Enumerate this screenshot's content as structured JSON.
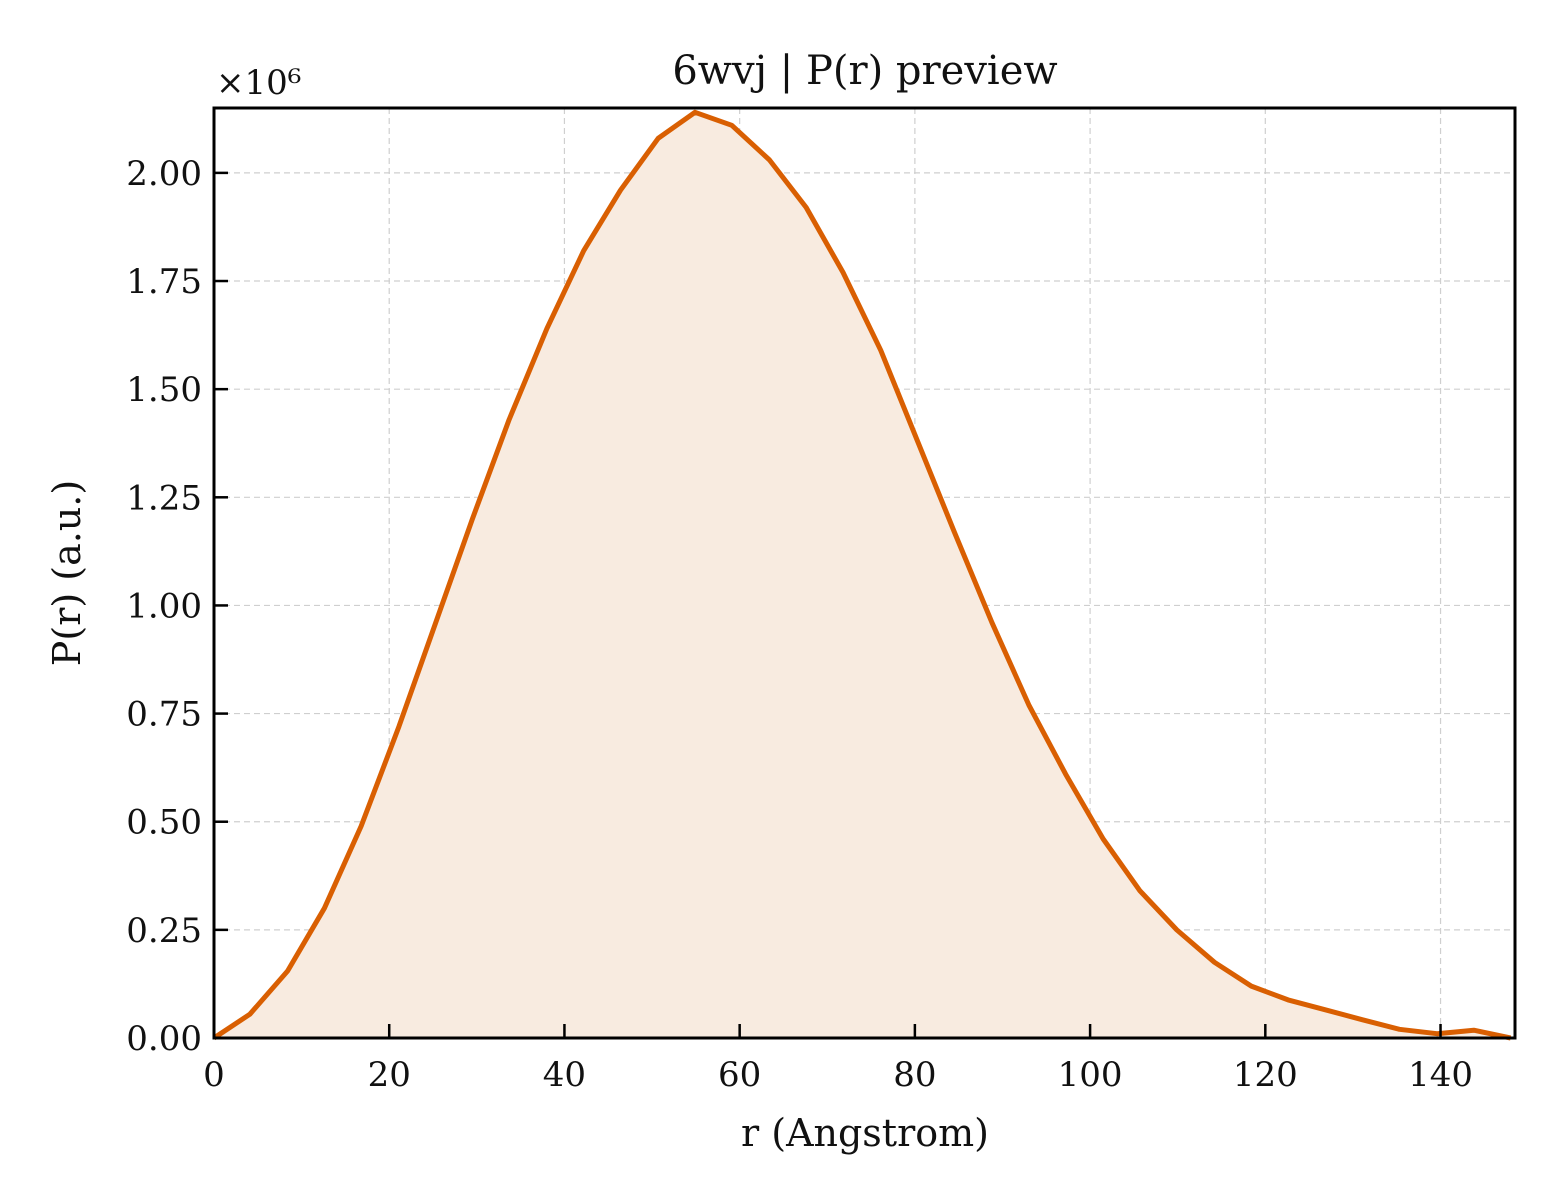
{
  "chart_data": {
    "type": "area",
    "title": "6wvj | P(r) preview",
    "xlabel": "r (Angstrom)",
    "ylabel": "P(r) (a.u.)",
    "y_multiplier_label": "×10⁶",
    "xlim": [
      0,
      148.5
    ],
    "ylim": [
      0,
      2.15
    ],
    "x_ticks": [
      0,
      20,
      40,
      60,
      80,
      100,
      120,
      140
    ],
    "y_ticks": [
      0.0,
      0.25,
      0.5,
      0.75,
      1.0,
      1.25,
      1.5,
      1.75,
      2.0
    ],
    "x_tick_labels": [
      "0",
      "20",
      "40",
      "60",
      "80",
      "100",
      "120",
      "140"
    ],
    "y_tick_labels": [
      "0.00",
      "0.25",
      "0.50",
      "0.75",
      "1.00",
      "1.25",
      "1.50",
      "1.75",
      "2.00"
    ],
    "grid": true,
    "colors": {
      "line": "#d95f02",
      "fill": "#f8ebe0",
      "grid": "#cfcfcf",
      "axes": "#000000"
    },
    "series": [
      {
        "x": [
          0,
          4.1,
          8.4,
          12.6,
          16.8,
          21.1,
          25.3,
          29.5,
          33.7,
          38.0,
          42.2,
          46.4,
          50.7,
          54.9,
          59.1,
          63.4,
          67.6,
          71.8,
          76.1,
          80.3,
          84.5,
          88.8,
          93.0,
          97.2,
          101.5,
          105.7,
          109.9,
          114.2,
          118.4,
          122.6,
          126.9,
          131.1,
          135.3,
          139.6,
          143.8,
          148.0
        ],
        "y": [
          0.0,
          0.055,
          0.155,
          0.3,
          0.49,
          0.72,
          0.96,
          1.2,
          1.43,
          1.64,
          1.82,
          1.96,
          2.08,
          2.14,
          2.11,
          2.03,
          1.92,
          1.77,
          1.59,
          1.38,
          1.17,
          0.96,
          0.77,
          0.61,
          0.46,
          0.34,
          0.25,
          0.175,
          0.12,
          0.088,
          0.065,
          0.042,
          0.02,
          0.01,
          0.018,
          0.0
        ]
      }
    ]
  }
}
